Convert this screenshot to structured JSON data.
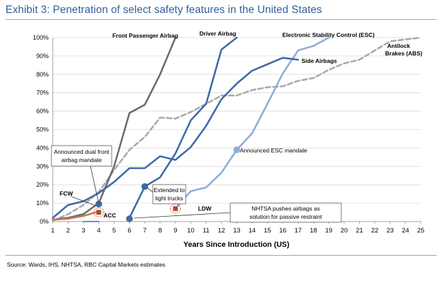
{
  "title": "Exhibit 3: Penetration of select safety features in the United States",
  "source": "Source: Wards, IHS, NHTSA, RBC Capital Markets estimates",
  "chart_data": {
    "type": "line",
    "xlabel": "Years Since Introduction (US)",
    "ylabel": "",
    "x": [
      1,
      2,
      3,
      4,
      5,
      6,
      7,
      8,
      9,
      10,
      11,
      12,
      13,
      14,
      15,
      16,
      17,
      18,
      19,
      20,
      21,
      22,
      23,
      24,
      25
    ],
    "xlim": [
      1,
      25
    ],
    "ylim": [
      0,
      100
    ],
    "yticks": [
      "0%",
      "10%",
      "20%",
      "30%",
      "40%",
      "50%",
      "60%",
      "70%",
      "80%",
      "90%",
      "100%"
    ],
    "series": [
      {
        "name": "Front Passenger Airbag",
        "color": "#6b6b6b",
        "dash": false,
        "points": [
          [
            1,
            1
          ],
          [
            2,
            2
          ],
          [
            3,
            4
          ],
          [
            4,
            10
          ],
          [
            5,
            30
          ],
          [
            6,
            59
          ],
          [
            7,
            63.5
          ],
          [
            8,
            80
          ],
          [
            9,
            100
          ]
        ]
      },
      {
        "name": "Driver Airbag",
        "color": "#3d6aa8",
        "dash": false,
        "points": [
          [
            6,
            2
          ],
          [
            7,
            19
          ],
          [
            8,
            24
          ],
          [
            9,
            37
          ],
          [
            10,
            55
          ],
          [
            11,
            64
          ],
          [
            12,
            93.5
          ],
          [
            13,
            100
          ]
        ]
      },
      {
        "name": "Side Airbags",
        "color": "#3d6aa8",
        "dash": false,
        "points": [
          [
            1,
            2
          ],
          [
            2,
            9
          ],
          [
            3,
            11
          ],
          [
            4,
            15.5
          ],
          [
            5,
            21.5
          ],
          [
            6,
            29
          ],
          [
            7,
            29
          ],
          [
            8,
            35.5
          ],
          [
            9,
            33.5
          ],
          [
            10,
            40.5
          ],
          [
            11,
            52
          ],
          [
            12,
            66.5
          ],
          [
            13,
            75
          ],
          [
            14,
            82
          ],
          [
            15,
            85.5
          ],
          [
            16,
            89
          ],
          [
            17,
            88
          ]
        ]
      },
      {
        "name": "Electronic Stability Control (ESC)",
        "color": "#8facd8",
        "dash": false,
        "points": [
          [
            9,
            7
          ],
          [
            10,
            16.5
          ],
          [
            11,
            18.5
          ],
          [
            12,
            26.5
          ],
          [
            13,
            39
          ],
          [
            14,
            48
          ],
          [
            15,
            64
          ],
          [
            16,
            80.5
          ],
          [
            17,
            93
          ],
          [
            18,
            95.5
          ],
          [
            19,
            100
          ]
        ]
      },
      {
        "name": "Antilock Brakes (ABS)",
        "color": "#a9a9a9",
        "dash": true,
        "points": [
          [
            1,
            0.5
          ],
          [
            2,
            4
          ],
          [
            3,
            9
          ],
          [
            4,
            16
          ],
          [
            5,
            28
          ],
          [
            6,
            39
          ],
          [
            7,
            46
          ],
          [
            8,
            56.5
          ],
          [
            9,
            56
          ],
          [
            10,
            59.5
          ],
          [
            11,
            64
          ],
          [
            12,
            68.5
          ],
          [
            13,
            68.5
          ],
          [
            14,
            71.5
          ],
          [
            15,
            73
          ],
          [
            16,
            73.5
          ],
          [
            17,
            76.5
          ],
          [
            18,
            78
          ],
          [
            19,
            82.5
          ],
          [
            20,
            86
          ],
          [
            21,
            88
          ],
          [
            22,
            93
          ],
          [
            23,
            98
          ],
          [
            24,
            99
          ],
          [
            25,
            100
          ]
        ]
      },
      {
        "name": "FCW",
        "color": "#3d6aa8",
        "dash": false,
        "points": [
          [
            3,
            0
          ],
          [
            4,
            0
          ]
        ]
      },
      {
        "name": "ACC",
        "color": "#c87a52",
        "dash": false,
        "points": [
          [
            1,
            1
          ],
          [
            2,
            1.5
          ],
          [
            3,
            3
          ],
          [
            4,
            5.5
          ]
        ]
      }
    ],
    "markers": [
      {
        "name": "FCW",
        "x": 4,
        "y": 9.5,
        "color": "#3d6aa8"
      },
      {
        "name": "Driver Airbag start",
        "x": 6,
        "y": 1.5,
        "color": "#3d6aa8"
      },
      {
        "name": "Extended to light trucks",
        "x": 7,
        "y": 19,
        "color": "#3d6aa8"
      },
      {
        "name": "Announced ESC mandate",
        "x": 13,
        "y": 39,
        "color": "#8facd8"
      }
    ],
    "square_markers": [
      {
        "name": "ACC",
        "x": 4,
        "y": 5,
        "color": "#a0522d"
      },
      {
        "name": "LDW",
        "x": 9,
        "y": 7,
        "color": "#a0522d"
      }
    ],
    "labels": {
      "front_passenger_airbag": "Front Passenger Airbag",
      "driver_airbag": "Driver Airbag",
      "esc": "Electronic Stability Control (ESC)",
      "abs_line1": "Antilock",
      "abs_line2": "Brakes (ABS)",
      "side_airbags": "Side Airbags",
      "fcw": "FCW",
      "acc": "ACC",
      "ldw": "LDW"
    },
    "annotations": {
      "dual_front_line1": "Announced dual front",
      "dual_front_line2": "airbag mandate",
      "extended_line1": "Extended to",
      "extended_line2": "light trucks",
      "esc_mandate": "Announced ESC mandate",
      "nhtsa_line1": "NHTSA pushes airbags as",
      "nhtsa_line2": "solution for passive restraint"
    }
  }
}
